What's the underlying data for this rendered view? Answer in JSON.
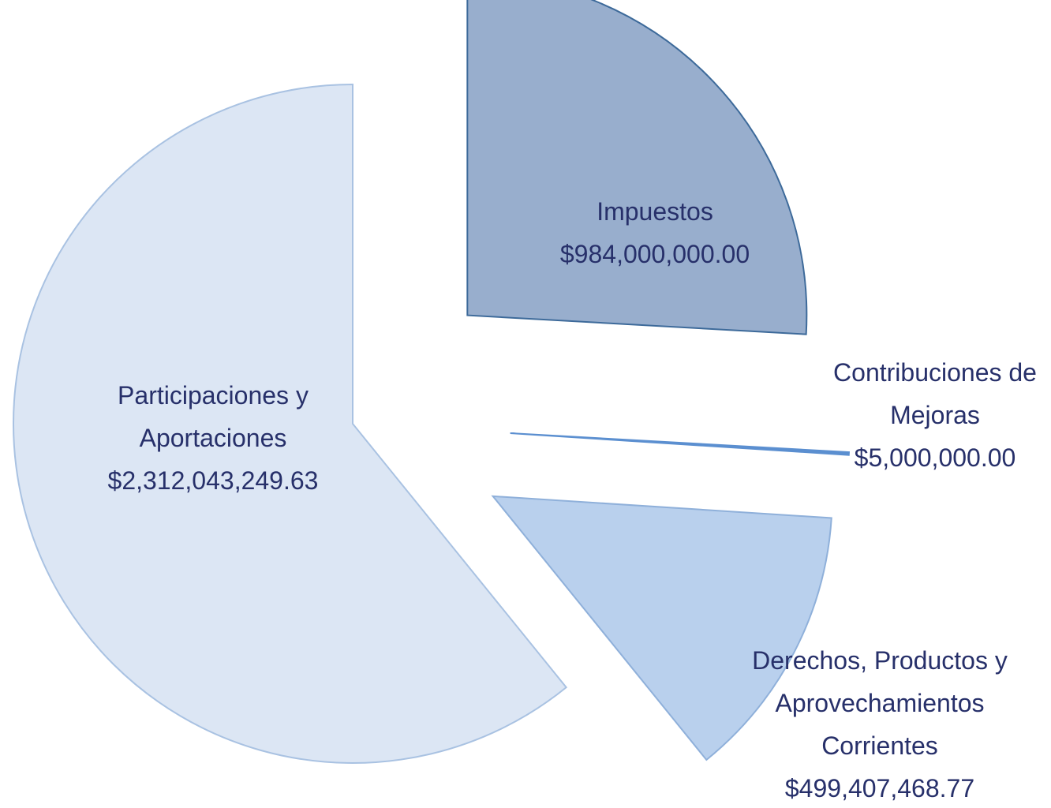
{
  "chart_data": {
    "type": "pie",
    "categories": [
      "Impuestos",
      "Contribuciones de Mejoras",
      "Derechos, Productos y Aprovechamientos Corrientes",
      "Participaciones y Aportaciones"
    ],
    "values": [
      984000000,
      5000000,
      499407468.77,
      2312043249.63
    ],
    "value_labels": [
      "$984,000,000.00",
      "$5,000,000.00",
      "$499,407,468.77",
      "$2,312,043,249.63"
    ],
    "colors": [
      "#98aecd",
      "#5b8fd0",
      "#b9d0ed",
      "#dce6f4"
    ]
  }
}
